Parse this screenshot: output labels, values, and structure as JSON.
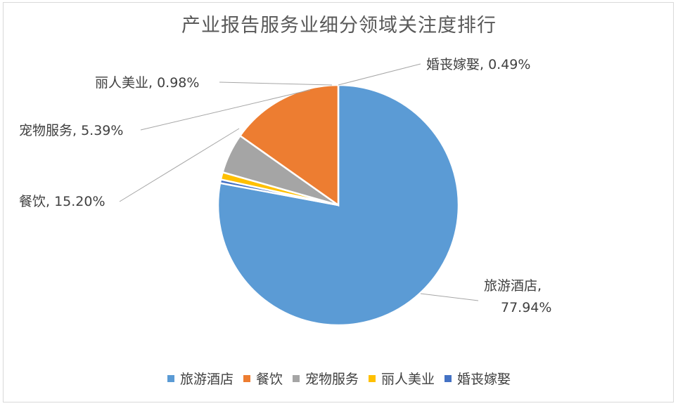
{
  "chart_data": {
    "type": "pie",
    "title": "产业报告服务业细分领域关注度排行",
    "slices": [
      {
        "name": "旅游酒店",
        "value": 77.94,
        "label_name": "旅游酒店,",
        "label_value": "77.94%",
        "color": "#5b9bd5"
      },
      {
        "name": "婚丧嫁娶",
        "value": 0.49,
        "label_name": "婚丧嫁娶,",
        "label_value": "0.49%",
        "color": "#4472c4"
      },
      {
        "name": "丽人美业",
        "value": 0.98,
        "label_name": "丽人美业,",
        "label_value": "0.98%",
        "color": "#ffc000"
      },
      {
        "name": "宠物服务",
        "value": 5.39,
        "label_name": "宠物服务,",
        "label_value": "5.39%",
        "color": "#a5a5a5"
      },
      {
        "name": "餐饮",
        "value": 15.2,
        "label_name": "餐饮,",
        "label_value": "15.20%",
        "color": "#ed7d31"
      }
    ],
    "legend": {
      "position": "bottom",
      "items": [
        {
          "name": "旅游酒店",
          "color": "#5b9bd5"
        },
        {
          "name": "餐饮",
          "color": "#ed7d31"
        },
        {
          "name": "宠物服务",
          "color": "#a5a5a5"
        },
        {
          "name": "丽人美业",
          "color": "#ffc000"
        },
        {
          "name": "婚丧嫁娶",
          "color": "#4472c4"
        }
      ]
    }
  }
}
